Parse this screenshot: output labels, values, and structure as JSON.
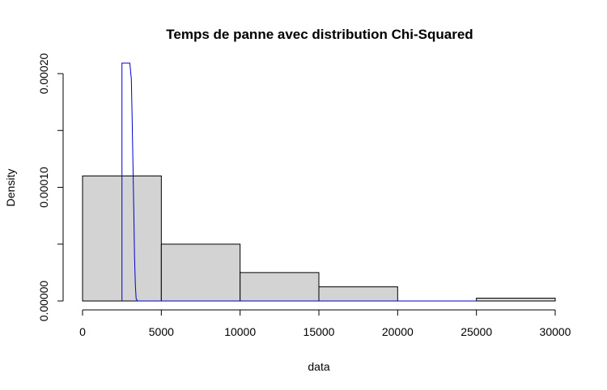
{
  "chart_data": {
    "type": "bar",
    "title": "Temps de panne avec distribution Chi-Squared",
    "xlabel": "data",
    "ylabel": "Density",
    "bins": [
      {
        "from": 0,
        "to": 5000,
        "density": 0.00011
      },
      {
        "from": 5000,
        "to": 10000,
        "density": 5e-05
      },
      {
        "from": 10000,
        "to": 15000,
        "density": 2.5e-05
      },
      {
        "from": 15000,
        "to": 20000,
        "density": 1.25e-05
      },
      {
        "from": 20000,
        "to": 25000,
        "density": 0
      },
      {
        "from": 25000,
        "to": 30000,
        "density": 2.5e-06
      }
    ],
    "xlim": [
      0,
      30000
    ],
    "ylim": [
      0,
      0.00022
    ],
    "x_ticks": [
      0,
      5000,
      10000,
      15000,
      20000,
      25000,
      30000
    ],
    "x_tick_labels": [
      "0",
      "5000",
      "10000",
      "15000",
      "20000",
      "25000",
      "30000"
    ],
    "y_ticks": [
      0,
      5e-05,
      0.0001,
      0.00015,
      0.0002
    ],
    "y_tick_labels": [
      "0.00000",
      "",
      "0.00010",
      "",
      "0.00020"
    ],
    "density_curve": {
      "x": [
        2500,
        2500,
        2700,
        2900,
        3000,
        3100,
        3150,
        3200,
        3250,
        3300,
        3350,
        3400,
        3500,
        20000,
        25000
      ],
      "y": [
        0,
        0.00022,
        0.00022,
        0.00022,
        0.00022,
        0.000195,
        0.00016,
        0.00012,
        8e-05,
        4e-05,
        1.5e-05,
        2e-06,
        0,
        0,
        0
      ]
    },
    "bar_fill": "#d3d3d3",
    "curve_color": "#0000cd",
    "grid": false
  }
}
